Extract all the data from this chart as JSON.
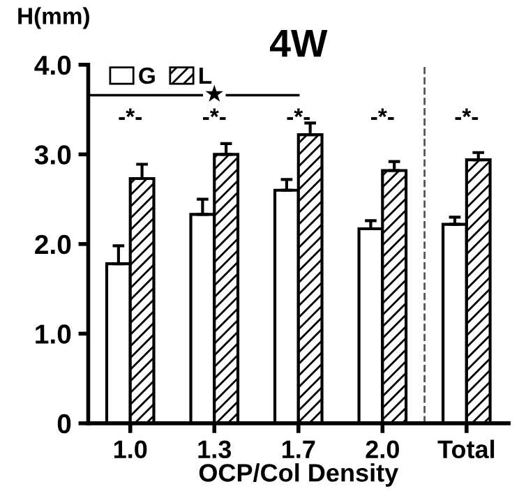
{
  "chart_data": {
    "type": "bar",
    "title": "4W",
    "ylabel": "H(mm)",
    "xlabel": "OCP/Col Density",
    "categories": [
      "1.0",
      "1.3",
      "1.7",
      "2.0",
      "Total"
    ],
    "series": [
      {
        "name": "G",
        "color": "#ffffff",
        "values": [
          1.78,
          2.33,
          2.6,
          2.17,
          2.22
        ],
        "errors": [
          0.2,
          0.17,
          0.12,
          0.09,
          0.08
        ]
      },
      {
        "name": "L",
        "color": "#000000",
        "values": [
          2.73,
          3.0,
          3.22,
          2.82,
          2.94
        ],
        "errors": [
          0.16,
          0.12,
          0.13,
          0.1,
          0.08
        ]
      }
    ],
    "ylim": [
      0,
      4.0
    ],
    "yticks": [
      0,
      {
        "value": 1,
        "label": "1.0"
      },
      {
        "value": 2,
        "label": "2.0"
      },
      {
        "value": 3,
        "label": "3.0"
      },
      {
        "value": 4,
        "label": "4.0"
      }
    ],
    "annotations": [
      "-*-",
      "-*-",
      "-*-",
      "-*-",
      "-*-",
      "★"
    ],
    "legend": "top left",
    "grid": false
  }
}
